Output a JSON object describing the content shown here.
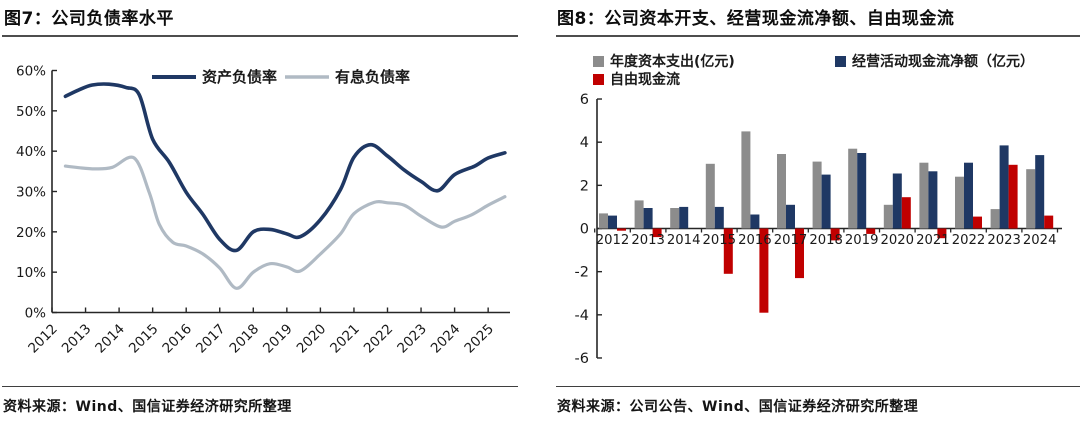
{
  "figures": [
    {
      "title": "图7：公司负债率水平",
      "source": "资料来源：Wind、国信证券经济研究所整理"
    },
    {
      "title": "图8：公司资本开支、经营现金流净额、自由现金流",
      "source": "资料来源：公司公告、Wind、国信证券经济研究所整理"
    }
  ],
  "colors": {
    "navy": "#1f3864",
    "light_gray_line": "#b0bac4",
    "gray_bar": "#8c8c8c",
    "red_bar": "#c00000",
    "axis": "#262626",
    "label_text": "#1a1a1a"
  },
  "chart_data": [
    {
      "type": "line",
      "title": "图7：公司负债率水平",
      "xlabel": "",
      "ylabel": "",
      "ylim": [
        0,
        60
      ],
      "y_ticks": [
        {
          "value": 60,
          "label": "60%"
        },
        {
          "value": 50,
          "label": "50%"
        },
        {
          "value": 40,
          "label": "40%"
        },
        {
          "value": 30,
          "label": "30%"
        },
        {
          "value": 20,
          "label": "20%"
        },
        {
          "value": 10,
          "label": "10%"
        },
        {
          "value": 0,
          "label": "0%"
        }
      ],
      "x_ticks": [
        {
          "value": 2012,
          "label": "2012"
        },
        {
          "value": 2013,
          "label": "2013"
        },
        {
          "value": 2014,
          "label": "2014"
        },
        {
          "value": 2015,
          "label": "2015"
        },
        {
          "value": 2016,
          "label": "2016"
        },
        {
          "value": 2017,
          "label": "2017"
        },
        {
          "value": 2018,
          "label": "2018"
        },
        {
          "value": 2019,
          "label": "2019"
        },
        {
          "value": 2020,
          "label": "2020"
        },
        {
          "value": 2021,
          "label": "2021"
        },
        {
          "value": 2022,
          "label": "2022"
        },
        {
          "value": 2023,
          "label": "2023"
        },
        {
          "value": 2024,
          "label": "2024"
        },
        {
          "value": 2025,
          "label": "2025"
        }
      ],
      "legend_position": "top",
      "grid": false,
      "series": [
        {
          "name": "资产负债率",
          "color": "#1f3864",
          "stroke_width": 3.6,
          "points": [
            [
              2012.4,
              53.6
            ],
            [
              2012.8,
              55.2
            ],
            [
              2013.2,
              56.4
            ],
            [
              2013.7,
              56.6
            ],
            [
              2014.2,
              55.8
            ],
            [
              2014.6,
              54.0
            ],
            [
              2015.0,
              43.0
            ],
            [
              2015.5,
              37.2
            ],
            [
              2016.0,
              29.8
            ],
            [
              2016.5,
              24.3
            ],
            [
              2017.0,
              18.1
            ],
            [
              2017.5,
              15.4
            ],
            [
              2018.0,
              20.0
            ],
            [
              2018.5,
              20.6
            ],
            [
              2019.0,
              19.5
            ],
            [
              2019.4,
              18.8
            ],
            [
              2020.0,
              23.0
            ],
            [
              2020.6,
              30.5
            ],
            [
              2021.0,
              38.5
            ],
            [
              2021.5,
              41.6
            ],
            [
              2022.0,
              38.8
            ],
            [
              2022.5,
              35.3
            ],
            [
              2023.0,
              32.5
            ],
            [
              2023.5,
              30.2
            ],
            [
              2024.0,
              34.2
            ],
            [
              2024.6,
              36.3
            ],
            [
              2025.0,
              38.3
            ],
            [
              2025.5,
              39.6
            ]
          ]
        },
        {
          "name": "有息负债率",
          "color": "#b0bac4",
          "stroke_width": 3.2,
          "points": [
            [
              2012.4,
              36.3
            ],
            [
              2012.8,
              35.9
            ],
            [
              2013.3,
              35.6
            ],
            [
              2013.8,
              36.0
            ],
            [
              2014.45,
              38.3
            ],
            [
              2014.9,
              29.7
            ],
            [
              2015.2,
              21.8
            ],
            [
              2015.6,
              17.4
            ],
            [
              2016.0,
              16.5
            ],
            [
              2016.5,
              14.5
            ],
            [
              2017.0,
              11.0
            ],
            [
              2017.5,
              6.0
            ],
            [
              2018.0,
              10.0
            ],
            [
              2018.5,
              12.1
            ],
            [
              2019.0,
              11.3
            ],
            [
              2019.4,
              10.3
            ],
            [
              2020.0,
              14.5
            ],
            [
              2020.6,
              19.5
            ],
            [
              2021.0,
              24.5
            ],
            [
              2021.6,
              27.3
            ],
            [
              2022.0,
              27.2
            ],
            [
              2022.5,
              26.6
            ],
            [
              2023.0,
              23.9
            ],
            [
              2023.6,
              21.2
            ],
            [
              2024.0,
              22.6
            ],
            [
              2024.5,
              24.2
            ],
            [
              2025.0,
              26.6
            ],
            [
              2025.5,
              28.7
            ]
          ]
        }
      ],
      "source": "资料来源：Wind、国信证券经济研究所整理"
    },
    {
      "type": "bar",
      "title": "图8：公司资本开支、经营现金流净额、自由现金流",
      "xlabel": "",
      "ylabel": "",
      "ylim": [
        -6,
        6
      ],
      "y_ticks": [
        {
          "value": 6,
          "label": "6"
        },
        {
          "value": 4,
          "label": "4"
        },
        {
          "value": 2,
          "label": "2"
        },
        {
          "value": 0,
          "label": "0"
        },
        {
          "value": -2,
          "label": "-2"
        },
        {
          "value": -4,
          "label": "-4"
        },
        {
          "value": -6,
          "label": "-6"
        }
      ],
      "categories": [
        "2012",
        "2013",
        "2014",
        "2015",
        "2016",
        "2017",
        "2018",
        "2019",
        "2020",
        "2021",
        "2022",
        "2023",
        "2024"
      ],
      "legend_position": "top",
      "grid": false,
      "series": [
        {
          "name": "年度资本支出(亿元)",
          "color": "#8c8c8c",
          "values": [
            0.7,
            1.3,
            0.95,
            3.0,
            4.5,
            3.45,
            3.1,
            3.7,
            1.1,
            3.05,
            2.4,
            0.9,
            2.75
          ]
        },
        {
          "name": "经营活动现金流净额（亿元）",
          "color": "#1f3864",
          "values": [
            0.6,
            0.95,
            1.0,
            1.0,
            0.65,
            1.1,
            2.5,
            3.5,
            2.55,
            2.65,
            3.05,
            3.85,
            3.4
          ]
        },
        {
          "name": "自由现金流",
          "color": "#c00000",
          "values": [
            -0.1,
            -0.4,
            0.0,
            -2.1,
            -3.9,
            -2.3,
            -0.55,
            -0.25,
            1.45,
            -0.45,
            0.55,
            2.95,
            0.6
          ]
        }
      ],
      "source": "资料来源：公司公告、Wind、国信证券经济研究所整理"
    }
  ]
}
